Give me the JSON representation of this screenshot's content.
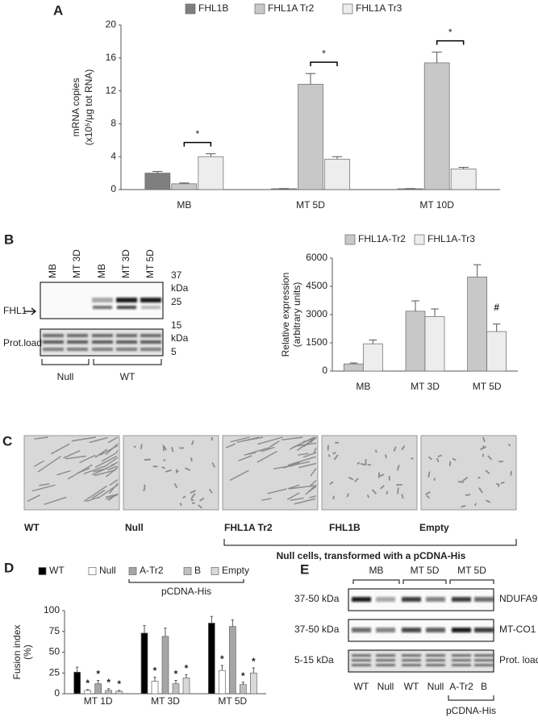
{
  "chart_data": [
    {
      "type": "bar",
      "panel_label": "A",
      "y_label": [
        "mRNA copies",
        "(x10⁵/µg tot RNA)"
      ],
      "categories": [
        "MB",
        "MT 5D",
        "MT 10D"
      ],
      "series": [
        {
          "name": "FHL1B",
          "color": "#7f7f7f",
          "values": [
            2.0,
            0.1,
            0.1
          ],
          "errors": [
            0.2,
            0.02,
            0.02
          ]
        },
        {
          "name": "FHL1A Tr2",
          "color": "#c8c8c8",
          "values": [
            0.7,
            12.8,
            15.4
          ],
          "errors": [
            0.1,
            1.3,
            1.3
          ]
        },
        {
          "name": "FHL1A Tr3",
          "color": "#ededed",
          "values": [
            4.0,
            3.7,
            2.5
          ],
          "errors": [
            0.35,
            0.3,
            0.2
          ]
        }
      ],
      "ylim": [
        0,
        20
      ],
      "yticks": [
        0,
        4,
        8,
        12,
        16,
        20
      ],
      "annotations": [
        "*",
        "*",
        "*"
      ]
    },
    {
      "type": "bar",
      "y_label": [
        "Relative expression",
        "(arbitrary units)"
      ],
      "categories": [
        "MB",
        "MT 3D",
        "MT 5D"
      ],
      "series": [
        {
          "name": "FHL1A-Tr2",
          "color": "#c8c8c8",
          "values": [
            380,
            3180,
            5000
          ],
          "errors": [
            50,
            550,
            650
          ]
        },
        {
          "name": "FHL1A-Tr3",
          "color": "#ededed",
          "values": [
            1450,
            2900,
            2100
          ],
          "errors": [
            200,
            400,
            400
          ],
          "annotations": [
            null,
            null,
            "#"
          ]
        }
      ],
      "ylim": [
        0,
        6000
      ],
      "yticks": [
        0,
        1500,
        3000,
        4500,
        6000
      ]
    },
    {
      "type": "bar",
      "panel_label": "D",
      "y_label": [
        "Fusion index",
        "(%)"
      ],
      "categories": [
        "MT 1D",
        "MT 3D",
        "MT 5D"
      ],
      "legend_group": "pCDNA-His",
      "series": [
        {
          "name": "WT",
          "color": "#000000",
          "values": [
            26,
            73,
            85
          ],
          "errors": [
            6,
            9,
            8
          ]
        },
        {
          "name": "Null",
          "color": "#ffffff",
          "values": [
            4,
            15,
            28
          ],
          "errors": [
            1,
            5,
            6
          ],
          "annotations": [
            "*",
            "*",
            "*"
          ]
        },
        {
          "name": "A-Tr2",
          "color": "#a6a6a6",
          "values": [
            12,
            69,
            81
          ],
          "errors": [
            4,
            10,
            8
          ],
          "annotations": [
            "*",
            null,
            null
          ]
        },
        {
          "name": "B",
          "color": "#bfbfbf",
          "values": [
            4,
            12,
            11
          ],
          "errors": [
            2,
            4,
            3
          ],
          "annotations": [
            "*",
            "*",
            "*"
          ]
        },
        {
          "name": "Empty",
          "color": "#d9d9d9",
          "values": [
            3,
            19,
            25
          ],
          "errors": [
            1,
            4,
            6
          ],
          "annotations": [
            "*",
            "*",
            "*"
          ]
        }
      ],
      "ylim": [
        0,
        100
      ],
      "yticks": [
        0,
        25,
        50,
        75,
        100
      ]
    }
  ],
  "blot_b": {
    "panel_label": "B",
    "lanes": [
      "MB",
      "MT 3D",
      "MB",
      "MT 3D",
      "MT 5D"
    ],
    "band_label": "FHL1",
    "markers": [
      "37",
      "kDa",
      "25",
      "15",
      "kDa",
      "5"
    ],
    "loading_label": "Prot.load",
    "groups": [
      "Null",
      "WT"
    ]
  },
  "micrographs": {
    "panel_label": "C",
    "captions": [
      "WT",
      "Null",
      "FHL1A Tr2",
      "FHL1B",
      "Empty"
    ],
    "group_label": "Null cells, transformed with a pCDNA-His"
  },
  "blot_e": {
    "panel_label": "E",
    "groups": [
      "MB",
      "MT 5D",
      "MT 5D"
    ],
    "rows": [
      {
        "size": "37-50 kDa",
        "name": "NDUFA9"
      },
      {
        "size": "37-50 kDa",
        "name": "MT-CO1"
      },
      {
        "size": "5-15 kDa",
        "name": "Prot. load"
      }
    ],
    "lanes": [
      "WT",
      "Null",
      "WT",
      "Null",
      "A-Tr2",
      "B"
    ],
    "lane_group": "pCDNA-His"
  }
}
